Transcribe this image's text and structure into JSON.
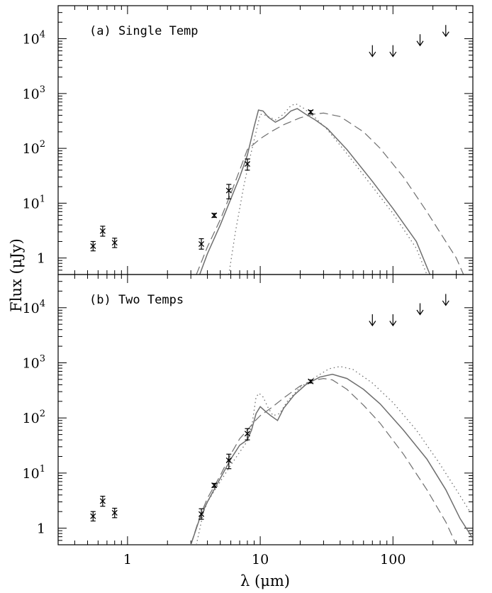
{
  "chart_data": {
    "type": "scatter",
    "xlabel": "λ (μm)",
    "ylabel": "Flux (μJy)",
    "xscale": "log",
    "yscale": "log",
    "xlim": [
      0.3,
      400
    ],
    "ylim": [
      0.5,
      40000
    ],
    "x_ticklabels": [
      {
        "v": 1,
        "label": "1"
      },
      {
        "v": 10,
        "label": "10"
      },
      {
        "v": 100,
        "label": "100"
      }
    ],
    "y_ticklabels": [
      {
        "v": 1,
        "base": "1",
        "exp": ""
      },
      {
        "v": 10,
        "base": "10",
        "exp": "1"
      },
      {
        "v": 100,
        "base": "10",
        "exp": "2"
      },
      {
        "v": 1000,
        "base": "10",
        "exp": "3"
      },
      {
        "v": 10000,
        "base": "10",
        "exp": "4"
      }
    ],
    "panels": [
      {
        "label": "(a) Single Temp",
        "points": [
          {
            "x": 0.55,
            "y": 1.65,
            "err": [
              1.35,
              2.0
            ]
          },
          {
            "x": 0.65,
            "y": 3.1,
            "err": [
              2.5,
              3.8
            ]
          },
          {
            "x": 0.8,
            "y": 1.9,
            "err": [
              1.55,
              2.3
            ]
          },
          {
            "x": 3.6,
            "y": 1.8,
            "err": [
              1.45,
              2.25
            ]
          },
          {
            "x": 4.5,
            "y": 6.0,
            "err": [
              5.5,
              6.5
            ]
          },
          {
            "x": 5.8,
            "y": 17,
            "err": [
              12,
              22
            ]
          },
          {
            "x": 8.0,
            "y": 52,
            "err": [
              40,
              64
            ]
          },
          {
            "x": 24,
            "y": 460,
            "err": [
              430,
              490
            ]
          }
        ],
        "upper_limits": [
          {
            "x": 70,
            "y": 6000
          },
          {
            "x": 100,
            "y": 6000
          },
          {
            "x": 160,
            "y": 9500
          },
          {
            "x": 250,
            "y": 14000
          }
        ],
        "curves": {
          "solid": [
            [
              3.5,
              0.5
            ],
            [
              4,
              1.2
            ],
            [
              5,
              4
            ],
            [
              6,
              12
            ],
            [
              7,
              30
            ],
            [
              8,
              75
            ],
            [
              9,
              250
            ],
            [
              9.7,
              500
            ],
            [
              10.5,
              480
            ],
            [
              11.5,
              370
            ],
            [
              13,
              300
            ],
            [
              15,
              360
            ],
            [
              17,
              480
            ],
            [
              19,
              530
            ],
            [
              22,
              420
            ],
            [
              26,
              330
            ],
            [
              32,
              230
            ],
            [
              45,
              95
            ],
            [
              70,
              25
            ],
            [
              100,
              8
            ],
            [
              150,
              2.0
            ],
            [
              190,
              0.5
            ]
          ],
          "dashed": [
            [
              3.3,
              0.5
            ],
            [
              4,
              1.6
            ],
            [
              5,
              5
            ],
            [
              6,
              15
            ],
            [
              7,
              40
            ],
            [
              8,
              95
            ],
            [
              10,
              150
            ],
            [
              12,
              200
            ],
            [
              15,
              270
            ],
            [
              20,
              360
            ],
            [
              25,
              420
            ],
            [
              30,
              440
            ],
            [
              40,
              380
            ],
            [
              60,
              200
            ],
            [
              80,
              100
            ],
            [
              120,
              30
            ],
            [
              180,
              7
            ],
            [
              250,
              2
            ],
            [
              300,
              1.0
            ],
            [
              340,
              0.5
            ]
          ],
          "dotted": [
            [
              5.8,
              0.5
            ],
            [
              6.5,
              3
            ],
            [
              7.5,
              20
            ],
            [
              8.5,
              80
            ],
            [
              9.3,
              200
            ],
            [
              10,
              420
            ],
            [
              11,
              400
            ],
            [
              13,
              330
            ],
            [
              15,
              420
            ],
            [
              17,
              600
            ],
            [
              18.5,
              650
            ],
            [
              21,
              550
            ],
            [
              26,
              360
            ],
            [
              32,
              220
            ],
            [
              45,
              80
            ],
            [
              70,
              20
            ],
            [
              100,
              6.5
            ],
            [
              150,
              1.5
            ],
            [
              180,
              0.5
            ]
          ]
        }
      },
      {
        "label": "(b) Two Temps",
        "points": [
          {
            "x": 0.55,
            "y": 1.65,
            "err": [
              1.35,
              2.0
            ]
          },
          {
            "x": 0.65,
            "y": 3.1,
            "err": [
              2.5,
              3.8
            ]
          },
          {
            "x": 0.8,
            "y": 1.9,
            "err": [
              1.55,
              2.3
            ]
          },
          {
            "x": 3.6,
            "y": 1.8,
            "err": [
              1.45,
              2.25
            ]
          },
          {
            "x": 4.5,
            "y": 6.0,
            "err": [
              5.5,
              6.5
            ]
          },
          {
            "x": 5.8,
            "y": 17,
            "err": [
              12,
              22
            ]
          },
          {
            "x": 8.0,
            "y": 52,
            "err": [
              40,
              64
            ]
          },
          {
            "x": 24,
            "y": 460,
            "err": [
              430,
              490
            ]
          }
        ],
        "upper_limits": [
          {
            "x": 70,
            "y": 6000
          },
          {
            "x": 100,
            "y": 6000
          },
          {
            "x": 160,
            "y": 9500
          },
          {
            "x": 250,
            "y": 14000
          }
        ],
        "curves": {
          "solid": [
            [
              3.0,
              0.5
            ],
            [
              3.5,
              1.5
            ],
            [
              4,
              3
            ],
            [
              5,
              8
            ],
            [
              6,
              18
            ],
            [
              7,
              32
            ],
            [
              8,
              40
            ],
            [
              8.6,
              60
            ],
            [
              9.3,
              120
            ],
            [
              10,
              160
            ],
            [
              11,
              130
            ],
            [
              12,
              110
            ],
            [
              13.5,
              90
            ],
            [
              15,
              150
            ],
            [
              18,
              260
            ],
            [
              22,
              400
            ],
            [
              28,
              550
            ],
            [
              35,
              620
            ],
            [
              45,
              520
            ],
            [
              60,
              330
            ],
            [
              80,
              180
            ],
            [
              120,
              60
            ],
            [
              180,
              18
            ],
            [
              250,
              5
            ],
            [
              320,
              1.5
            ],
            [
              400,
              0.65
            ]
          ],
          "dashed": [
            [
              3.0,
              0.5
            ],
            [
              3.5,
              1.6
            ],
            [
              4,
              3.5
            ],
            [
              5,
              9
            ],
            [
              6,
              22
            ],
            [
              7,
              42
            ],
            [
              8,
              60
            ],
            [
              9,
              85
            ],
            [
              10,
              110
            ],
            [
              12,
              150
            ],
            [
              15,
              230
            ],
            [
              20,
              380
            ],
            [
              25,
              480
            ],
            [
              30,
              520
            ],
            [
              35,
              490
            ],
            [
              45,
              330
            ],
            [
              60,
              170
            ],
            [
              80,
              80
            ],
            [
              120,
              22
            ],
            [
              180,
              5
            ],
            [
              250,
              1.3
            ],
            [
              300,
              0.5
            ]
          ],
          "dotted": [
            [
              3.3,
              0.5
            ],
            [
              3.7,
              1.8
            ],
            [
              4,
              3
            ],
            [
              5,
              7
            ],
            [
              6,
              14
            ],
            [
              7,
              24
            ],
            [
              8,
              38
            ],
            [
              8.7,
              80
            ],
            [
              9.3,
              240
            ],
            [
              9.8,
              280
            ],
            [
              10.5,
              240
            ],
            [
              11.5,
              150
            ],
            [
              12.5,
              110
            ],
            [
              14,
              120
            ],
            [
              16,
              200
            ],
            [
              20,
              360
            ],
            [
              26,
              550
            ],
            [
              33,
              780
            ],
            [
              40,
              860
            ],
            [
              50,
              760
            ],
            [
              70,
              430
            ],
            [
              100,
              190
            ],
            [
              150,
              60
            ],
            [
              220,
              16
            ],
            [
              300,
              5
            ],
            [
              380,
              2.0
            ]
          ]
        }
      }
    ]
  }
}
